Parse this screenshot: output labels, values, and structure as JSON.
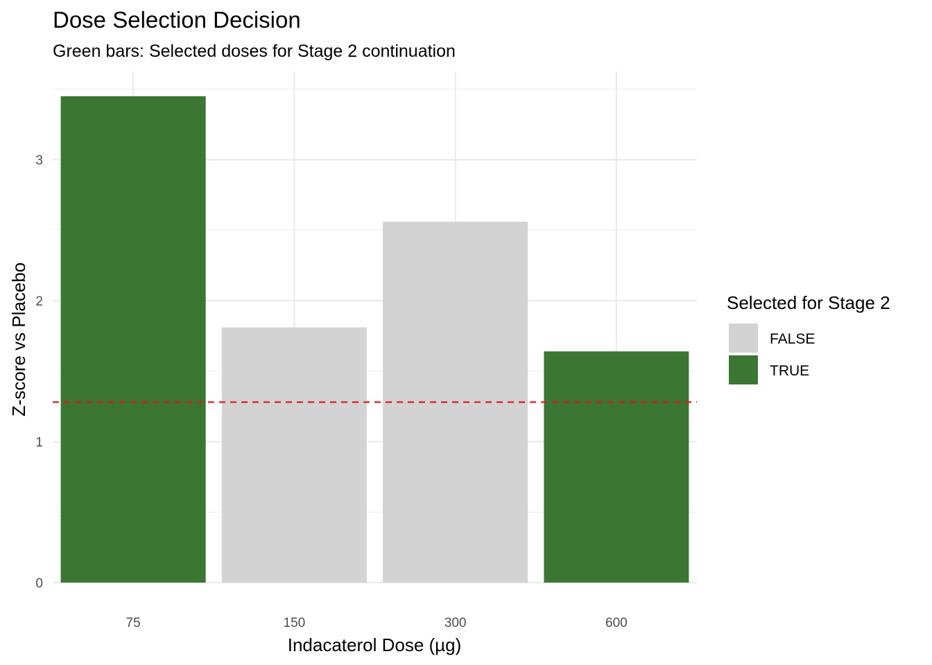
{
  "chart_data": {
    "type": "bar",
    "title": "Dose Selection Decision",
    "subtitle": "Green bars: Selected doses for Stage 2 continuation",
    "xlabel": "Indacaterol Dose (µg)",
    "ylabel": "Z-score vs Placebo",
    "categories": [
      "75",
      "150",
      "300",
      "600"
    ],
    "values": [
      3.45,
      1.81,
      2.56,
      1.64
    ],
    "selected": [
      "TRUE",
      "FALSE",
      "FALSE",
      "TRUE"
    ],
    "ylim": [
      0,
      3.5
    ],
    "yticks": [
      0,
      1,
      2,
      3
    ],
    "threshold": {
      "value": 1.28,
      "color": "#e41a1c",
      "style": "dashed"
    },
    "grid": true,
    "legend": {
      "title": "Selected for Stage 2",
      "position": "right",
      "entries": [
        {
          "label": "FALSE",
          "color": "#d3d3d3"
        },
        {
          "label": "TRUE",
          "color": "#3b7632"
        }
      ]
    }
  }
}
